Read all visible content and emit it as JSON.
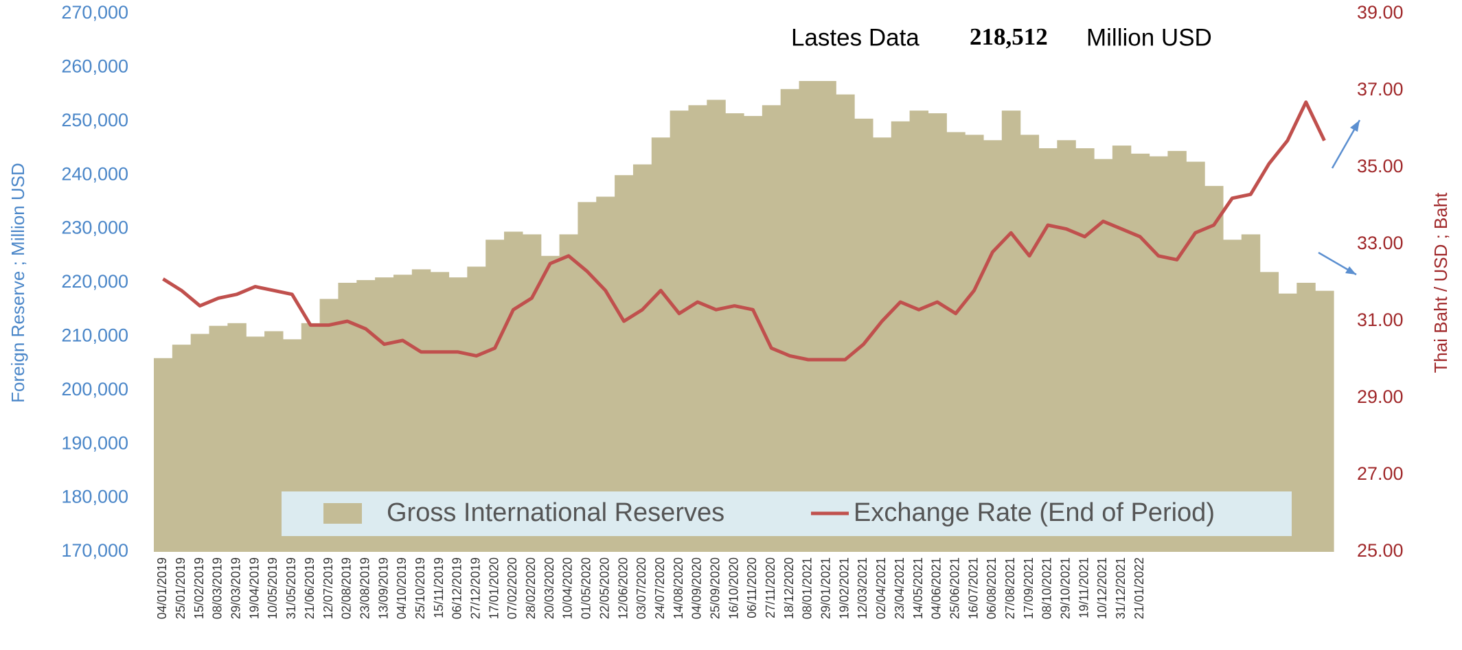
{
  "chart_data": {
    "type": "bar",
    "annotation": {
      "label": "Lastes Data",
      "value": "218,512",
      "unit": "Million USD"
    },
    "ylabel": "Foreign Reserve ; Million USD",
    "y2label": "Thai Baht / USD  ;  Baht",
    "categories": [
      "04/01/2019",
      "25/01/2019",
      "15/02/2019",
      "08/03/2019",
      "29/03/2019",
      "19/04/2019",
      "10/05/2019",
      "31/05/2019",
      "21/06/2019",
      "12/07/2019",
      "02/08/2019",
      "23/08/2019",
      "13/09/2019",
      "04/10/2019",
      "25/10/2019",
      "15/11/2019",
      "06/12/2019",
      "27/12/2019",
      "17/01/2020",
      "07/02/2020",
      "28/02/2020",
      "20/03/2020",
      "10/04/2020",
      "01/05/2020",
      "22/05/2020",
      "12/06/2020",
      "03/07/2020",
      "24/07/2020",
      "14/08/2020",
      "04/09/2020",
      "25/09/2020",
      "16/10/2020",
      "06/11/2020",
      "27/11/2020",
      "18/12/2020",
      "08/01/2021",
      "29/01/2021",
      "19/02/2021",
      "12/03/2021",
      "02/04/2021",
      "23/04/2021",
      "14/05/2021",
      "04/06/2021",
      "25/06/2021",
      "16/07/2021",
      "06/08/2021",
      "27/08/2021",
      "17/09/2021",
      "08/10/2021",
      "29/10/2021",
      "19/11/2021",
      "10/12/2021",
      "31/12/2021",
      "21/01/2022",
      null,
      null,
      null,
      null,
      null,
      null,
      null,
      null,
      null,
      null
    ],
    "series": [
      {
        "name": "Gross International Reserves",
        "type": "bar",
        "color": "#c4bc96",
        "values": [
          206000,
          208500,
          210500,
          212000,
          212500,
          210000,
          211000,
          209500,
          212500,
          217000,
          220000,
          220500,
          221000,
          221500,
          222500,
          222000,
          221000,
          223000,
          228000,
          229500,
          229000,
          225000,
          229000,
          235000,
          236000,
          240000,
          242000,
          247000,
          252000,
          253000,
          254000,
          251500,
          251000,
          253000,
          256000,
          257500,
          257500,
          255000,
          250500,
          247000,
          250000,
          252000,
          251500,
          248000,
          247500,
          246500,
          252000,
          247500,
          245000,
          246500,
          245000,
          243000,
          245500,
          244000,
          243500,
          244500,
          242500,
          238000,
          228000,
          229000,
          222000,
          218000,
          220000,
          218512
        ]
      },
      {
        "name": "Exchange Rate (End of Period)",
        "type": "line",
        "color": "#c0504d",
        "axis": "y2",
        "values": [
          32.1,
          31.8,
          31.4,
          31.6,
          31.7,
          31.9,
          31.8,
          31.7,
          30.9,
          30.9,
          31.0,
          30.8,
          30.4,
          30.5,
          30.2,
          30.2,
          30.2,
          30.1,
          30.3,
          31.3,
          31.6,
          32.5,
          32.7,
          32.3,
          31.8,
          31.0,
          31.3,
          31.8,
          31.2,
          31.5,
          31.3,
          31.4,
          31.3,
          30.3,
          30.1,
          30.0,
          30.0,
          30.0,
          30.4,
          31.0,
          31.5,
          31.3,
          31.5,
          31.2,
          31.8,
          32.8,
          33.3,
          32.7,
          33.5,
          33.4,
          33.2,
          33.6,
          33.4,
          33.2,
          32.7,
          32.6,
          33.3,
          33.5,
          34.2,
          34.3,
          35.1,
          35.7,
          36.7,
          35.7
        ]
      }
    ],
    "ylim": [
      170000,
      270000
    ],
    "yticks": [
      {
        "value": 170000,
        "label": "170,000"
      },
      {
        "value": 180000,
        "label": "180,000"
      },
      {
        "value": 190000,
        "label": "190,000"
      },
      {
        "value": 200000,
        "label": "200,000"
      },
      {
        "value": 210000,
        "label": "210,000"
      },
      {
        "value": 220000,
        "label": "220,000"
      },
      {
        "value": 230000,
        "label": "230,000"
      },
      {
        "value": 240000,
        "label": "240,000"
      },
      {
        "value": 250000,
        "label": "250,000"
      },
      {
        "value": 260000,
        "label": "260,000"
      },
      {
        "value": 270000,
        "label": "270,000"
      }
    ],
    "y2lim": [
      25,
      39
    ],
    "y2ticks": [
      {
        "value": 25,
        "label": "25.00"
      },
      {
        "value": 27,
        "label": "27.00"
      },
      {
        "value": 29,
        "label": "29.00"
      },
      {
        "value": 31,
        "label": "31.00"
      },
      {
        "value": 33,
        "label": "33.00"
      },
      {
        "value": 35,
        "label": "35.00"
      },
      {
        "value": 37,
        "label": "37.00"
      },
      {
        "value": 39,
        "label": "39.00"
      }
    ],
    "legend": "bottom"
  }
}
